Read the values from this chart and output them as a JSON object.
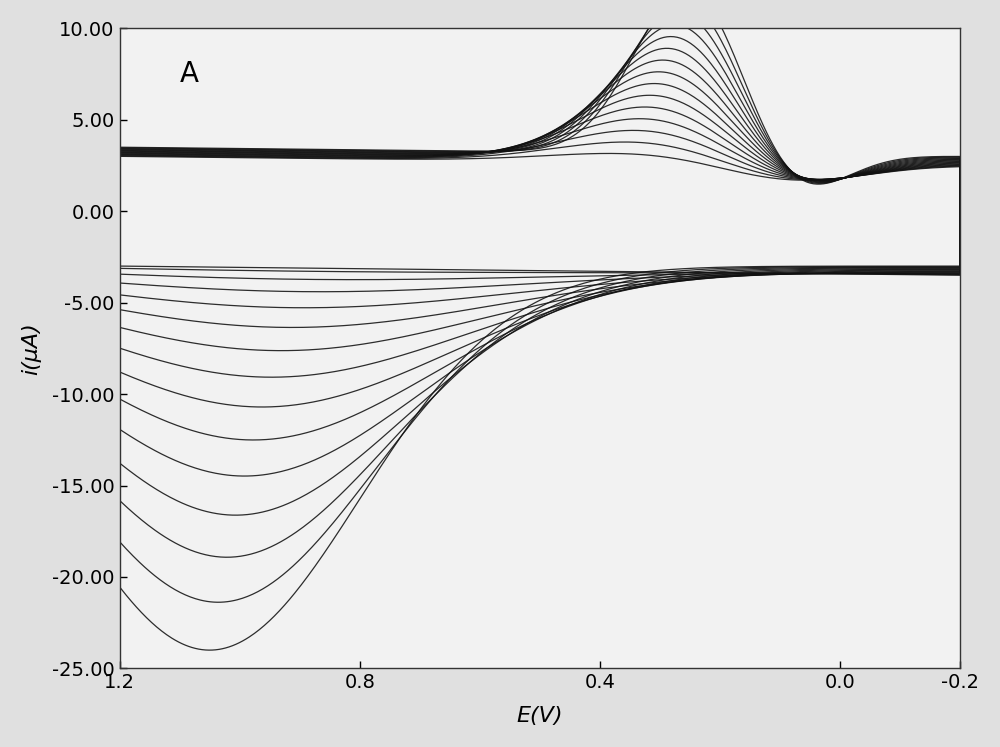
{
  "title_label": "A",
  "xlabel": "E(V)",
  "ylabel": "i(μA)",
  "xlim": [
    1.2,
    -0.2
  ],
  "ylim": [
    -25.0,
    10.0
  ],
  "yticks": [
    -25.0,
    -20.0,
    -15.0,
    -10.0,
    -5.0,
    0.0,
    5.0,
    10.0
  ],
  "xticks": [
    1.2,
    0.8,
    0.4,
    0.0,
    -0.2
  ],
  "num_cycles": 15,
  "bg_color": "#e0e0e0",
  "plot_bg_color": "#f2f2f2",
  "line_color": "#111111",
  "line_width": 0.9
}
